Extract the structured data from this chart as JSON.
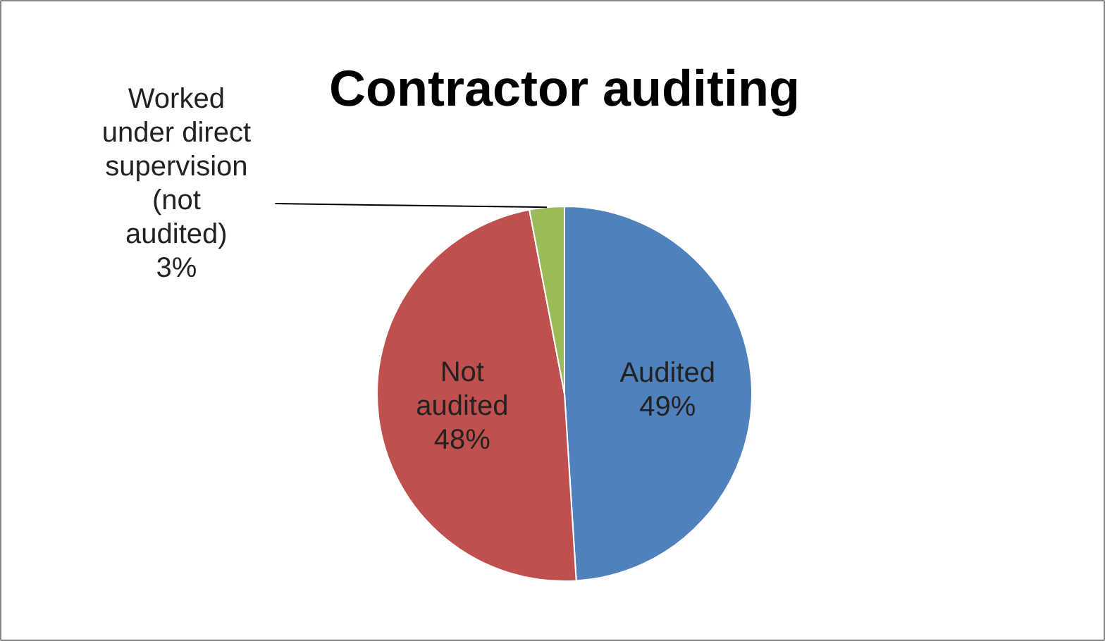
{
  "chart_data": {
    "type": "pie",
    "title": "Contractor auditing",
    "categories": [
      "Audited",
      "Not audited",
      "Worked under direct supervision (not audited)"
    ],
    "values": [
      49,
      48,
      3
    ],
    "colors": [
      "#4f81bd",
      "#c0504d",
      "#9bbb59"
    ],
    "value_labels": [
      "49%",
      "48%",
      "3%"
    ]
  }
}
